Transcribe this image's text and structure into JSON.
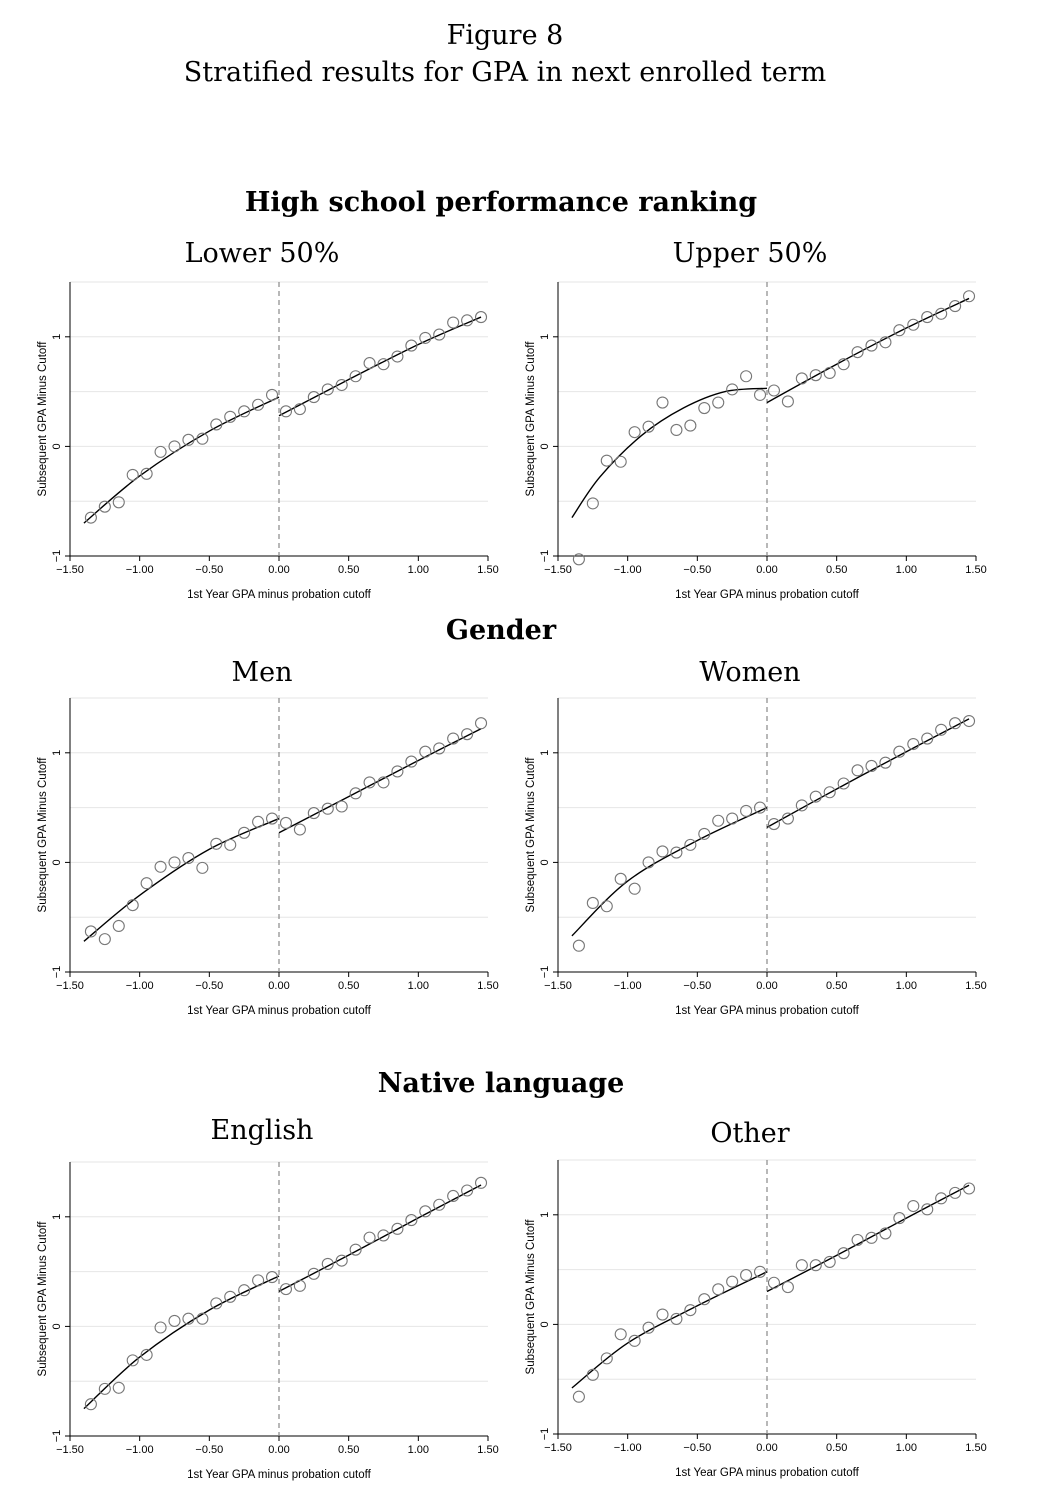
{
  "figure": {
    "label": "Figure 8",
    "caption": "Stratified results for GPA in next enrolled term"
  },
  "sections": [
    {
      "title": "High school performance ranking"
    },
    {
      "title": "Gender"
    },
    {
      "title": "Native language"
    }
  ],
  "colors": {
    "marker": "#777777",
    "fit": "#000000",
    "cutoff": "#888888",
    "grid": "#e6e6e6"
  },
  "chart_data": [
    {
      "type": "scatter",
      "title": "Lower 50%",
      "xlabel": "1st Year GPA minus probation cutoff",
      "ylabel": "Subsequent GPA Minus Cutoff",
      "xlim": [
        -1.5,
        1.5
      ],
      "ylim": [
        -1,
        1.5
      ],
      "xticks": [
        "−1.50",
        "−1.00",
        "−0.50",
        "0.00",
        "0.50",
        "1.00",
        "1.50"
      ],
      "yticks": [
        "−1",
        "0",
        "1"
      ],
      "grid": true,
      "cutoff": 0,
      "x": [
        -1.35,
        -1.25,
        -1.15,
        -1.05,
        -0.95,
        -0.85,
        -0.75,
        -0.65,
        -0.55,
        -0.45,
        -0.35,
        -0.25,
        -0.15,
        -0.05,
        0.05,
        0.15,
        0.25,
        0.35,
        0.45,
        0.55,
        0.65,
        0.75,
        0.85,
        0.95,
        1.05,
        1.15,
        1.25,
        1.35,
        1.45
      ],
      "y": [
        -0.65,
        -0.55,
        -0.51,
        -0.26,
        -0.25,
        -0.05,
        0.0,
        0.06,
        0.07,
        0.2,
        0.27,
        0.32,
        0.38,
        0.47,
        0.32,
        0.34,
        0.45,
        0.52,
        0.56,
        0.64,
        0.76,
        0.75,
        0.82,
        0.92,
        0.99,
        1.02,
        1.13,
        1.15,
        1.18
      ],
      "fit": [
        {
          "x": [
            -1.4,
            -1.0,
            -0.5,
            0.0
          ],
          "y": [
            -0.7,
            -0.27,
            0.14,
            0.45
          ]
        },
        {
          "x": [
            0.0,
            0.5,
            1.0,
            1.45
          ],
          "y": [
            0.28,
            0.61,
            0.93,
            1.18
          ]
        }
      ]
    },
    {
      "type": "scatter",
      "title": "Upper 50%",
      "xlabel": "1st Year GPA minus probation cutoff",
      "ylabel": "Subsequent GPA Minus Cutoff",
      "xlim": [
        -1.5,
        1.5
      ],
      "ylim": [
        -1,
        1.5
      ],
      "xticks": [
        "−1.50",
        "−1.00",
        "−0.50",
        "0.00",
        "0.50",
        "1.00",
        "1.50"
      ],
      "yticks": [
        "−1",
        "0",
        "1"
      ],
      "grid": true,
      "cutoff": 0,
      "x": [
        -1.35,
        -1.25,
        -1.15,
        -1.05,
        -0.95,
        -0.85,
        -0.75,
        -0.65,
        -0.55,
        -0.45,
        -0.35,
        -0.25,
        -0.15,
        -0.05,
        0.05,
        0.15,
        0.25,
        0.35,
        0.45,
        0.55,
        0.65,
        0.75,
        0.85,
        0.95,
        1.05,
        1.15,
        1.25,
        1.35,
        1.45
      ],
      "y": [
        -1.03,
        -0.52,
        -0.13,
        -0.14,
        0.13,
        0.18,
        0.4,
        0.15,
        0.19,
        0.35,
        0.4,
        0.52,
        0.64,
        0.47,
        0.51,
        0.41,
        0.62,
        0.65,
        0.67,
        0.75,
        0.86,
        0.92,
        0.95,
        1.06,
        1.11,
        1.18,
        1.21,
        1.28,
        1.37
      ],
      "fit": [
        {
          "x": [
            -1.4,
            -1.2,
            -0.9,
            -0.6,
            -0.3,
            0.0
          ],
          "y": [
            -0.65,
            -0.28,
            0.1,
            0.35,
            0.5,
            0.53
          ]
        },
        {
          "x": [
            0.0,
            0.5,
            1.0,
            1.45
          ],
          "y": [
            0.4,
            0.75,
            1.08,
            1.35
          ]
        }
      ]
    },
    {
      "type": "scatter",
      "title": "Men",
      "xlabel": "1st Year GPA minus probation cutoff",
      "ylabel": "Subsequent GPA Minus Cutoff",
      "xlim": [
        -1.5,
        1.5
      ],
      "ylim": [
        -1,
        1.5
      ],
      "xticks": [
        "−1.50",
        "−1.00",
        "−0.50",
        "0.00",
        "0.50",
        "1.00",
        "1.50"
      ],
      "yticks": [
        "−1",
        "0",
        "1"
      ],
      "grid": true,
      "cutoff": 0,
      "x": [
        -1.35,
        -1.25,
        -1.15,
        -1.05,
        -0.95,
        -0.85,
        -0.75,
        -0.65,
        -0.55,
        -0.45,
        -0.35,
        -0.25,
        -0.15,
        -0.05,
        0.05,
        0.15,
        0.25,
        0.35,
        0.45,
        0.55,
        0.65,
        0.75,
        0.85,
        0.95,
        1.05,
        1.15,
        1.25,
        1.35,
        1.45
      ],
      "y": [
        -0.63,
        -0.7,
        -0.58,
        -0.39,
        -0.19,
        -0.04,
        0.0,
        0.04,
        -0.05,
        0.17,
        0.16,
        0.27,
        0.37,
        0.4,
        0.36,
        0.3,
        0.45,
        0.49,
        0.51,
        0.63,
        0.73,
        0.73,
        0.83,
        0.92,
        1.01,
        1.04,
        1.13,
        1.17,
        1.27
      ],
      "fit": [
        {
          "x": [
            -1.4,
            -1.0,
            -0.5,
            0.0
          ],
          "y": [
            -0.72,
            -0.3,
            0.12,
            0.4
          ]
        },
        {
          "x": [
            0.0,
            0.5,
            1.0,
            1.45
          ],
          "y": [
            0.27,
            0.6,
            0.93,
            1.22
          ]
        }
      ]
    },
    {
      "type": "scatter",
      "title": "Women",
      "xlabel": "1st Year GPA minus probation cutoff",
      "ylabel": "Subsequent GPA Minus Cutoff",
      "xlim": [
        -1.5,
        1.5
      ],
      "ylim": [
        -1,
        1.5
      ],
      "xticks": [
        "−1.50",
        "−1.00",
        "−0.50",
        "0.00",
        "0.50",
        "1.00",
        "1.50"
      ],
      "yticks": [
        "−1",
        "0",
        "1"
      ],
      "grid": true,
      "cutoff": 0,
      "x": [
        -1.35,
        -1.25,
        -1.15,
        -1.05,
        -0.95,
        -0.85,
        -0.75,
        -0.65,
        -0.55,
        -0.45,
        -0.35,
        -0.25,
        -0.15,
        -0.05,
        0.05,
        0.15,
        0.25,
        0.35,
        0.45,
        0.55,
        0.65,
        0.75,
        0.85,
        0.95,
        1.05,
        1.15,
        1.25,
        1.35,
        1.45
      ],
      "y": [
        -0.76,
        -0.37,
        -0.4,
        -0.15,
        -0.24,
        0.0,
        0.1,
        0.09,
        0.16,
        0.26,
        0.38,
        0.4,
        0.47,
        0.5,
        0.35,
        0.4,
        0.52,
        0.6,
        0.64,
        0.72,
        0.84,
        0.88,
        0.91,
        1.01,
        1.08,
        1.13,
        1.21,
        1.27,
        1.29
      ],
      "fit": [
        {
          "x": [
            -1.4,
            -1.0,
            -0.5,
            0.0
          ],
          "y": [
            -0.67,
            -0.17,
            0.2,
            0.5
          ]
        },
        {
          "x": [
            0.0,
            0.5,
            1.0,
            1.45
          ],
          "y": [
            0.32,
            0.67,
            1.01,
            1.31
          ]
        }
      ]
    },
    {
      "type": "scatter",
      "title": "English",
      "xlabel": "1st Year GPA minus probation cutoff",
      "ylabel": "Subsequent GPA Minus Cutoff",
      "xlim": [
        -1.5,
        1.5
      ],
      "ylim": [
        -1,
        1.5
      ],
      "xticks": [
        "−1.50",
        "−1.00",
        "−0.50",
        "0.00",
        "0.50",
        "1.00",
        "1.50"
      ],
      "yticks": [
        "−1",
        "0",
        "1"
      ],
      "grid": true,
      "cutoff": 0,
      "x": [
        -1.35,
        -1.25,
        -1.15,
        -1.05,
        -0.95,
        -0.85,
        -0.75,
        -0.65,
        -0.55,
        -0.45,
        -0.35,
        -0.25,
        -0.15,
        -0.05,
        0.05,
        0.15,
        0.25,
        0.35,
        0.45,
        0.55,
        0.65,
        0.75,
        0.85,
        0.95,
        1.05,
        1.15,
        1.25,
        1.35,
        1.45
      ],
      "y": [
        -0.71,
        -0.57,
        -0.56,
        -0.31,
        -0.26,
        -0.01,
        0.05,
        0.07,
        0.07,
        0.21,
        0.27,
        0.33,
        0.42,
        0.45,
        0.34,
        0.37,
        0.48,
        0.57,
        0.6,
        0.7,
        0.81,
        0.83,
        0.89,
        0.97,
        1.05,
        1.11,
        1.19,
        1.24,
        1.31
      ],
      "fit": [
        {
          "x": [
            -1.4,
            -1.0,
            -0.5,
            0.0
          ],
          "y": [
            -0.75,
            -0.28,
            0.15,
            0.46
          ]
        },
        {
          "x": [
            0.0,
            0.5,
            1.0,
            1.45
          ],
          "y": [
            0.32,
            0.65,
            0.99,
            1.29
          ]
        }
      ]
    },
    {
      "type": "scatter",
      "title": "Other",
      "xlabel": "1st Year GPA minus probation cutoff",
      "ylabel": "Subsequent GPA Minus Cutoff",
      "xlim": [
        -1.5,
        1.5
      ],
      "ylim": [
        -1,
        1.5
      ],
      "xticks": [
        "−1.50",
        "−1.00",
        "−0.50",
        "0.00",
        "0.50",
        "1.00",
        "1.50"
      ],
      "yticks": [
        "−1",
        "0",
        "1"
      ],
      "grid": true,
      "cutoff": 0,
      "x": [
        -1.35,
        -1.25,
        -1.15,
        -1.05,
        -0.95,
        -0.85,
        -0.75,
        -0.65,
        -0.55,
        -0.45,
        -0.35,
        -0.25,
        -0.15,
        -0.05,
        0.05,
        0.15,
        0.25,
        0.35,
        0.45,
        0.55,
        0.65,
        0.75,
        0.85,
        0.95,
        1.05,
        1.15,
        1.25,
        1.35,
        1.45
      ],
      "y": [
        -0.66,
        -0.46,
        -0.31,
        -0.09,
        -0.15,
        -0.03,
        0.09,
        0.05,
        0.13,
        0.23,
        0.32,
        0.39,
        0.45,
        0.48,
        0.38,
        0.34,
        0.54,
        0.54,
        0.57,
        0.65,
        0.77,
        0.79,
        0.83,
        0.97,
        1.08,
        1.05,
        1.15,
        1.2,
        1.24
      ],
      "fit": [
        {
          "x": [
            -1.4,
            -1.0,
            -0.5,
            0.0
          ],
          "y": [
            -0.58,
            -0.17,
            0.17,
            0.48
          ]
        },
        {
          "x": [
            0.0,
            0.5,
            1.0,
            1.45
          ],
          "y": [
            0.3,
            0.63,
            0.97,
            1.27
          ]
        }
      ]
    }
  ]
}
